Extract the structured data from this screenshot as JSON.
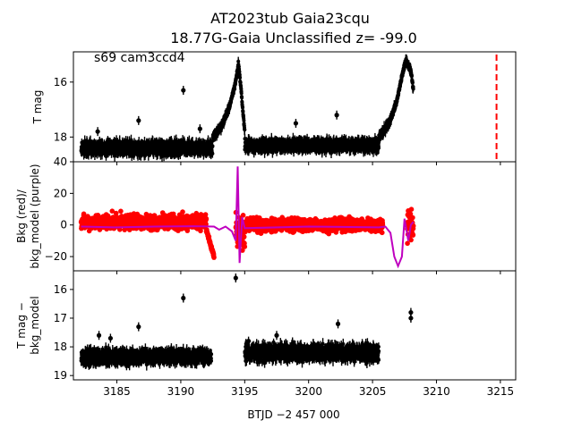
{
  "title_line1": "AT2023tub  Gaia23cqu",
  "title_line2": "18.77G-Gaia Unclassified z= -99.0",
  "annotation": "s69 cam3ccd4",
  "xlabel": "BTJD −2 457 000",
  "colors": {
    "flux": "#000000",
    "bkg": "#ff0000",
    "bkg_model": "#bf00bf",
    "event_line": "#ff0000"
  },
  "chart_data": [
    {
      "type": "scatter",
      "panel": "top",
      "ylabel": "T mag",
      "ylim": [
        18.9,
        14.9
      ],
      "y_inverted": true,
      "xlim": [
        3181.6,
        3216.2
      ],
      "xticks": [
        3185,
        3190,
        3195,
        3200,
        3205,
        3210,
        3215
      ],
      "yticks": [
        16,
        18
      ],
      "event_line_x": 3214.7,
      "series": [
        {
          "segments": [
            {
              "x_range": [
                3182.2,
                3192.5
              ],
              "y_base": 18.4,
              "scatter": 0.35
            },
            {
              "x_range": [
                3192.5,
                3194.5
              ],
              "shape": "rise",
              "y_points": [
                [
                  3192.5,
                  18.0
                ],
                [
                  3193.2,
                  17.6
                ],
                [
                  3193.8,
                  16.9
                ],
                [
                  3194.2,
                  16.2
                ],
                [
                  3194.5,
                  15.4
                ]
              ]
            },
            {
              "x_range": [
                3194.5,
                3195.0
              ],
              "shape": "fall",
              "y_points": [
                [
                  3194.5,
                  15.3
                ],
                [
                  3194.7,
                  16.2
                ],
                [
                  3194.85,
                  17.0
                ],
                [
                  3195.0,
                  17.8
                ]
              ]
            },
            {
              "x_range": [
                3195.0,
                3205.5
              ],
              "y_base": 18.3,
              "scatter": 0.3
            },
            {
              "x_range": [
                3205.5,
                3208.2
              ],
              "shape": "rise",
              "y_points": [
                [
                  3205.5,
                  18.0
                ],
                [
                  3206.3,
                  17.5
                ],
                [
                  3206.9,
                  16.7
                ],
                [
                  3207.3,
                  15.8
                ],
                [
                  3207.6,
                  15.2
                ],
                [
                  3208.0,
                  15.6
                ],
                [
                  3208.2,
                  16.3
                ]
              ]
            }
          ],
          "outliers": [
            [
              3190.2,
              16.3
            ],
            [
              3186.7,
              17.4
            ],
            [
              3199.0,
              17.5
            ],
            [
              3202.2,
              17.2
            ],
            [
              3183.5,
              17.8
            ],
            [
              3191.5,
              17.7
            ]
          ]
        }
      ]
    },
    {
      "type": "line",
      "panel": "middle",
      "ylabel": "Bkg (red)/\nbkg_model (purple)",
      "ylim": [
        -29,
        40
      ],
      "xlim": [
        3181.6,
        3216.2
      ],
      "yticks": [
        -20,
        0,
        20,
        40
      ],
      "series": [
        {
          "style": "scatter-red",
          "segments": [
            {
              "x_range": [
                3182.2,
                3192.0
              ],
              "y_base": 2,
              "scatter": 7
            },
            {
              "x_range": [
                3192.0,
                3192.6
              ],
              "shape": "dip",
              "y_points": [
                [
                  3192.0,
                  -3
                ],
                [
                  3192.3,
                  -12
                ],
                [
                  3192.6,
                  -20
                ]
              ]
            },
            {
              "x_range": [
                3194.3,
                3195.0
              ],
              "y_base": -5,
              "scatter": 15
            },
            {
              "x_range": [
                3195.0,
                3205.8
              ],
              "y_base": 0,
              "scatter": 6
            },
            {
              "x_range": [
                3207.7,
                3208.2
              ],
              "y_base": 0,
              "scatter": 15
            }
          ]
        },
        {
          "style": "line-purple",
          "points": [
            [
              3182.2,
              -1
            ],
            [
              3185,
              -1.5
            ],
            [
              3188,
              -1
            ],
            [
              3191,
              -0.8
            ],
            [
              3192.6,
              -1
            ],
            [
              3193,
              -3
            ],
            [
              3193.5,
              -1
            ],
            [
              3194.0,
              -4
            ],
            [
              3194.3,
              -10
            ],
            [
              3194.45,
              37
            ],
            [
              3194.6,
              -24
            ],
            [
              3194.8,
              5
            ],
            [
              3195.0,
              -2
            ],
            [
              3200,
              -1
            ],
            [
              3205.5,
              -1.5
            ],
            [
              3206.0,
              -1
            ],
            [
              3206.4,
              -5
            ],
            [
              3206.7,
              -20
            ],
            [
              3207.0,
              -26
            ],
            [
              3207.3,
              -20
            ],
            [
              3207.5,
              4
            ],
            [
              3207.8,
              -10
            ],
            [
              3208.0,
              0
            ],
            [
              3208.2,
              2
            ]
          ]
        }
      ]
    },
    {
      "type": "scatter",
      "panel": "bottom",
      "ylabel": "T mag −\nbkg_model",
      "ylim": [
        19.15,
        15.35
      ],
      "y_inverted": true,
      "xlim": [
        3181.6,
        3216.2
      ],
      "yticks": [
        16,
        17,
        18,
        19
      ],
      "series": [
        {
          "segments": [
            {
              "x_range": [
                3182.2,
                3192.4
              ],
              "y_base": 18.35,
              "scatter": 0.35
            },
            {
              "x_range": [
                3195.0,
                3205.5
              ],
              "y_base": 18.2,
              "scatter": 0.4
            }
          ],
          "outliers": [
            [
              3194.3,
              15.6
            ],
            [
              3190.2,
              16.3
            ],
            [
              3186.7,
              17.3
            ],
            [
              3183.6,
              17.6
            ],
            [
              3184.5,
              17.7
            ],
            [
              3195.3,
              17.8
            ],
            [
              3197.5,
              17.6
            ],
            [
              3202.3,
              17.2
            ],
            [
              3208.0,
              16.8
            ],
            [
              3208.0,
              17.0
            ]
          ]
        }
      ]
    }
  ]
}
